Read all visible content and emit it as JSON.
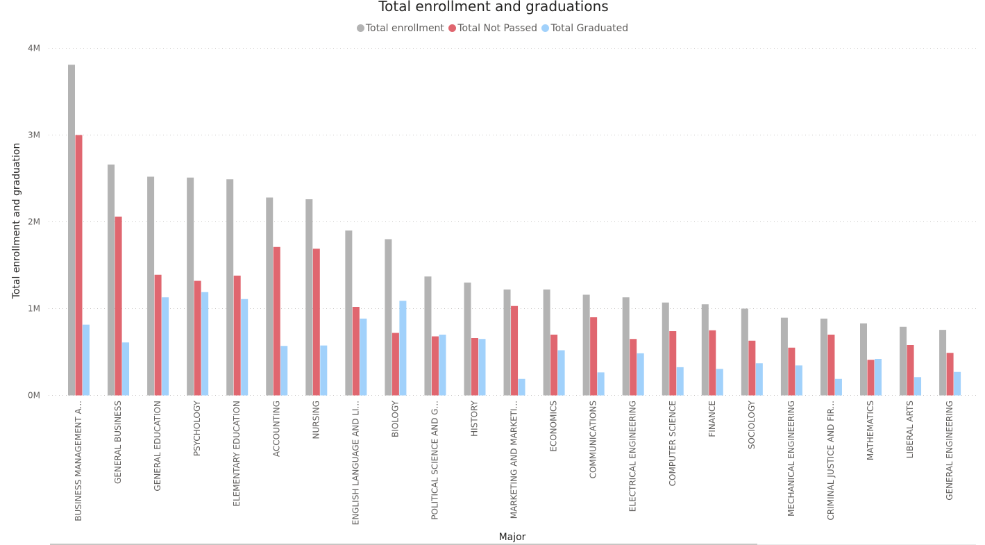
{
  "chart_data": {
    "type": "bar",
    "title": "Total enrollment and graduations",
    "xlabel": "Major",
    "ylabel": "Total enrollment and graduation",
    "ylim": [
      0,
      4000000
    ],
    "yticks": [
      "0M",
      "1M",
      "2M",
      "3M",
      "4M"
    ],
    "grid": true,
    "legend_position": "top-center",
    "categories": [
      "BUSINESS MANAGEMENT A...",
      "GENERAL BUSINESS",
      "GENERAL EDUCATION",
      "PSYCHOLOGY",
      "ELEMENTARY EDUCATION",
      "ACCOUNTING",
      "NURSING",
      "ENGLISH LANGUAGE AND LI...",
      "BIOLOGY",
      "POLITICAL SCIENCE AND G...",
      "HISTORY",
      "MARKETING AND MARKETI...",
      "ECONOMICS",
      "COMMUNICATIONS",
      "ELECTRICAL ENGINEERING",
      "COMPUTER SCIENCE",
      "FINANCE",
      "SOCIOLOGY",
      "MECHANICAL ENGINEERING",
      "CRIMINAL JUSTICE AND FIR...",
      "MATHEMATICS",
      "LIBERAL ARTS",
      "GENERAL ENGINEERING"
    ],
    "series": [
      {
        "name": "Total enrollment",
        "color": "#b3b3b3",
        "values": [
          3810000,
          2660000,
          2520000,
          2510000,
          2490000,
          2280000,
          2260000,
          1900000,
          1800000,
          1370000,
          1300000,
          1220000,
          1220000,
          1160000,
          1130000,
          1070000,
          1050000,
          1000000,
          895000,
          885000,
          830000,
          790000,
          755000
        ]
      },
      {
        "name": "Total Not Passed",
        "color": "#e0666f",
        "values": [
          3000000,
          2060000,
          1390000,
          1320000,
          1380000,
          1710000,
          1690000,
          1020000,
          720000,
          680000,
          660000,
          1030000,
          700000,
          900000,
          650000,
          740000,
          750000,
          630000,
          550000,
          700000,
          410000,
          580000,
          490000
        ]
      },
      {
        "name": "Total Graduated",
        "color": "#a1d1fb",
        "values": [
          815000,
          610000,
          1130000,
          1190000,
          1110000,
          570000,
          575000,
          885000,
          1090000,
          700000,
          650000,
          190000,
          520000,
          265000,
          485000,
          325000,
          305000,
          370000,
          345000,
          190000,
          420000,
          210000,
          270000
        ]
      }
    ]
  }
}
